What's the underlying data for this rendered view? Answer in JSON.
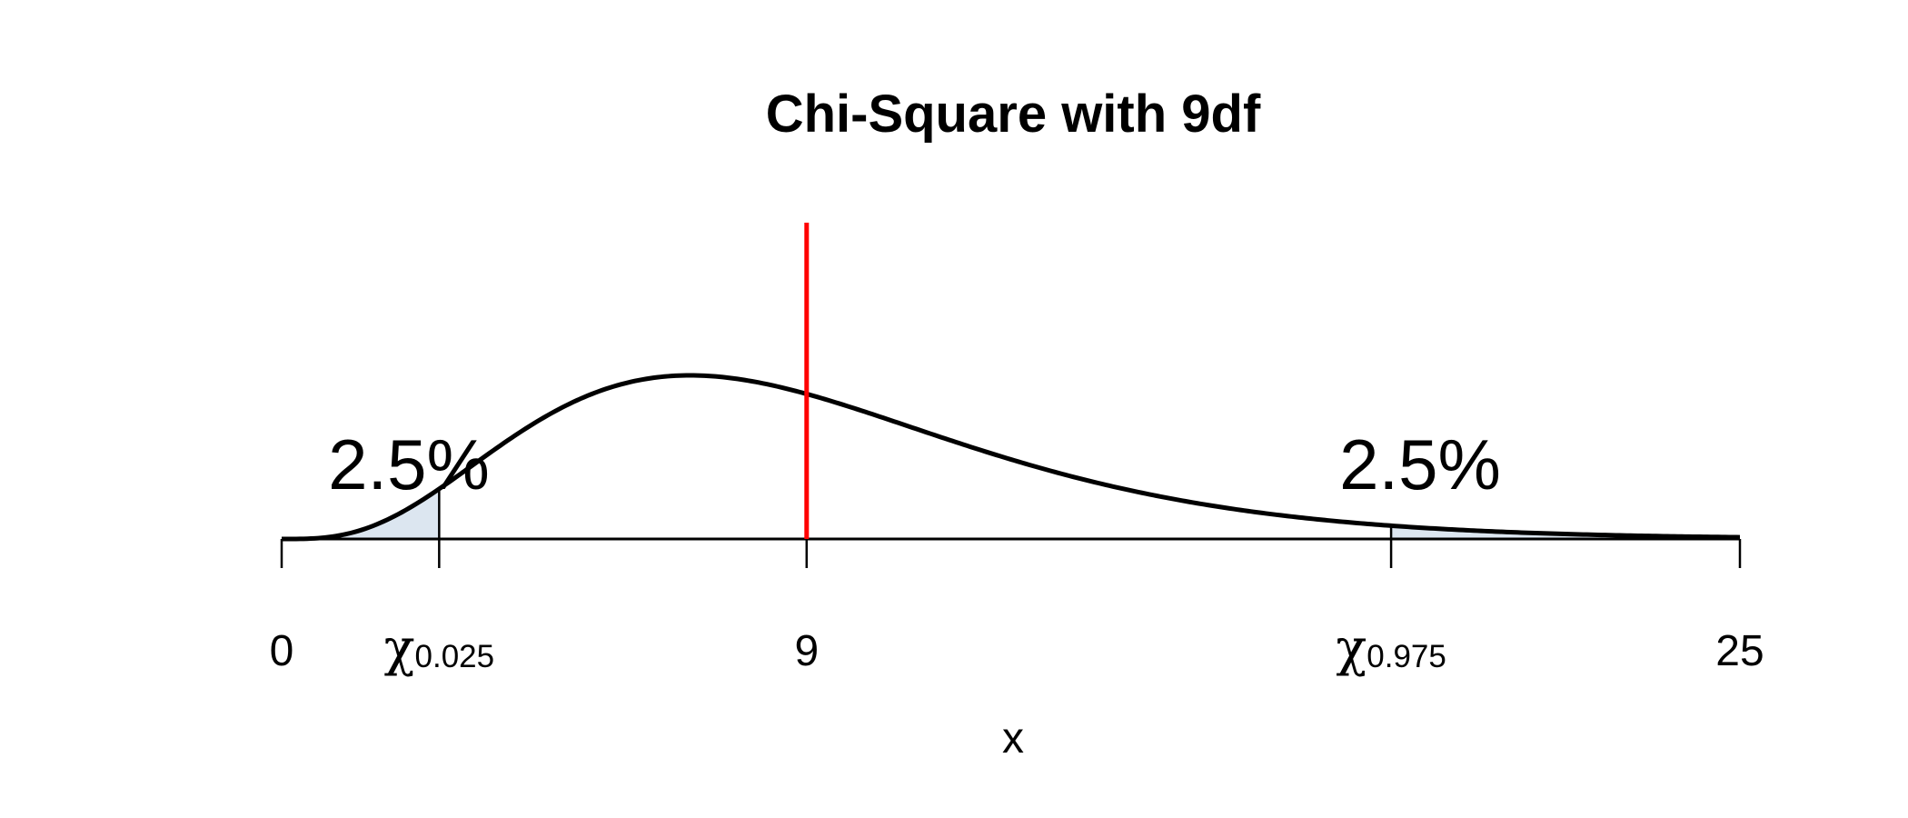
{
  "chart_data": {
    "type": "area",
    "title": "Chi-Square with 9df",
    "xlabel": "x",
    "ylabel": "",
    "distribution": "chi-square",
    "df": 9,
    "xlim": [
      0,
      25
    ],
    "critical_values": [
      {
        "id": "lower",
        "symbol": "χ",
        "subscript": "0.025",
        "x": 2.7,
        "tail_percent_label": "2.5%"
      },
      {
        "id": "upper",
        "symbol": "χ",
        "subscript": "0.975",
        "x": 19.02,
        "tail_percent_label": "2.5%"
      }
    ],
    "reference_line": {
      "x": 9,
      "label": "9",
      "color": "#ff0000"
    },
    "ticks": [
      {
        "x": 0,
        "label": "0"
      },
      {
        "x": 2.7,
        "symbol": "χ",
        "subscript": "0.025"
      },
      {
        "x": 9,
        "label": "9"
      },
      {
        "x": 19.02,
        "symbol": "χ",
        "subscript": "0.975"
      },
      {
        "x": 25,
        "label": "25"
      }
    ],
    "colors": {
      "curve": "#000000",
      "tail_fill": "#dce6f0",
      "reference_line": "#ff0000",
      "axis": "#000000"
    },
    "grid": false,
    "legend": "none"
  }
}
